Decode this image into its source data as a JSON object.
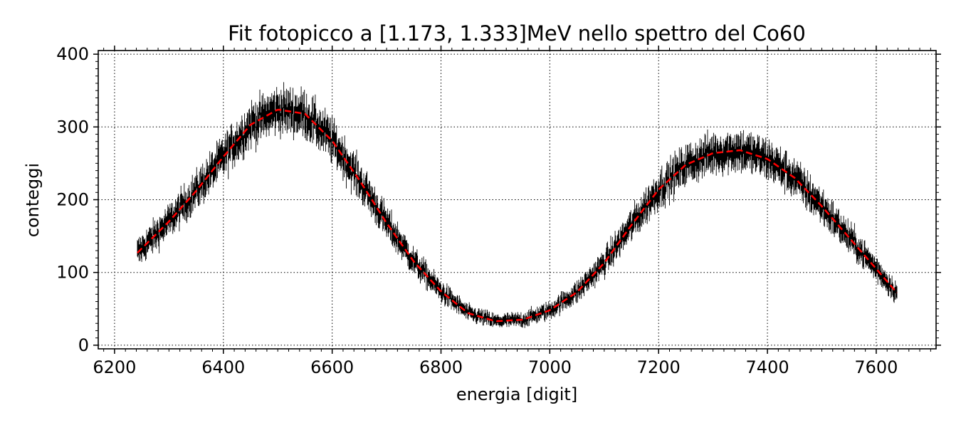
{
  "chart_data": {
    "type": "scatter",
    "title": "Fit fotopicco a [1.173, 1.333]MeV nello spettro del Co60",
    "xlabel": "energia [digit]",
    "ylabel": "conteggi",
    "xlim": [
      6170,
      7710
    ],
    "ylim": [
      -5,
      405
    ],
    "xticks": [
      6200,
      6400,
      6600,
      6800,
      7000,
      7200,
      7400,
      7600
    ],
    "yticks": [
      0,
      100,
      200,
      300,
      400
    ],
    "xtick_labels": [
      "6200",
      "6400",
      "6600",
      "6800",
      "7000",
      "7200",
      "7400",
      "7600"
    ],
    "ytick_labels": [
      "0",
      "100",
      "200",
      "300",
      "400"
    ],
    "grid": true,
    "grid_style": "dotted",
    "legend": "none",
    "series": [
      {
        "kind": "data_with_error_bars",
        "color": "#000000",
        "x_range": [
          6242,
          7638
        ],
        "envelope_x": [
          6242,
          6300,
          6350,
          6400,
          6450,
          6500,
          6550,
          6600,
          6650,
          6700,
          6750,
          6800,
          6850,
          6900,
          6950,
          7000,
          7050,
          7100,
          7150,
          7200,
          7250,
          7300,
          7350,
          7400,
          7450,
          7500,
          7550,
          7600,
          7638
        ],
        "envelope_y": [
          127,
          170,
          212,
          259,
          303,
          324,
          318,
          281,
          227,
          168,
          115,
          74,
          44,
          33,
          35,
          48,
          73,
          113,
          165,
          214,
          248,
          264,
          268,
          256,
          230,
          191,
          148,
          105,
          72
        ]
      },
      {
        "kind": "fit",
        "style": "dashed",
        "color": "#ff0000",
        "x": [
          6242,
          6300,
          6350,
          6400,
          6450,
          6500,
          6550,
          6600,
          6650,
          6700,
          6750,
          6800,
          6850,
          6900,
          6950,
          7000,
          7050,
          7100,
          7150,
          7200,
          7250,
          7300,
          7350,
          7400,
          7450,
          7500,
          7550,
          7600,
          7638
        ],
        "y": [
          127,
          170,
          212,
          259,
          303,
          324,
          318,
          281,
          227,
          168,
          115,
          74,
          44,
          33,
          35,
          48,
          73,
          113,
          165,
          214,
          248,
          264,
          268,
          256,
          230,
          191,
          148,
          105,
          72
        ]
      }
    ]
  }
}
